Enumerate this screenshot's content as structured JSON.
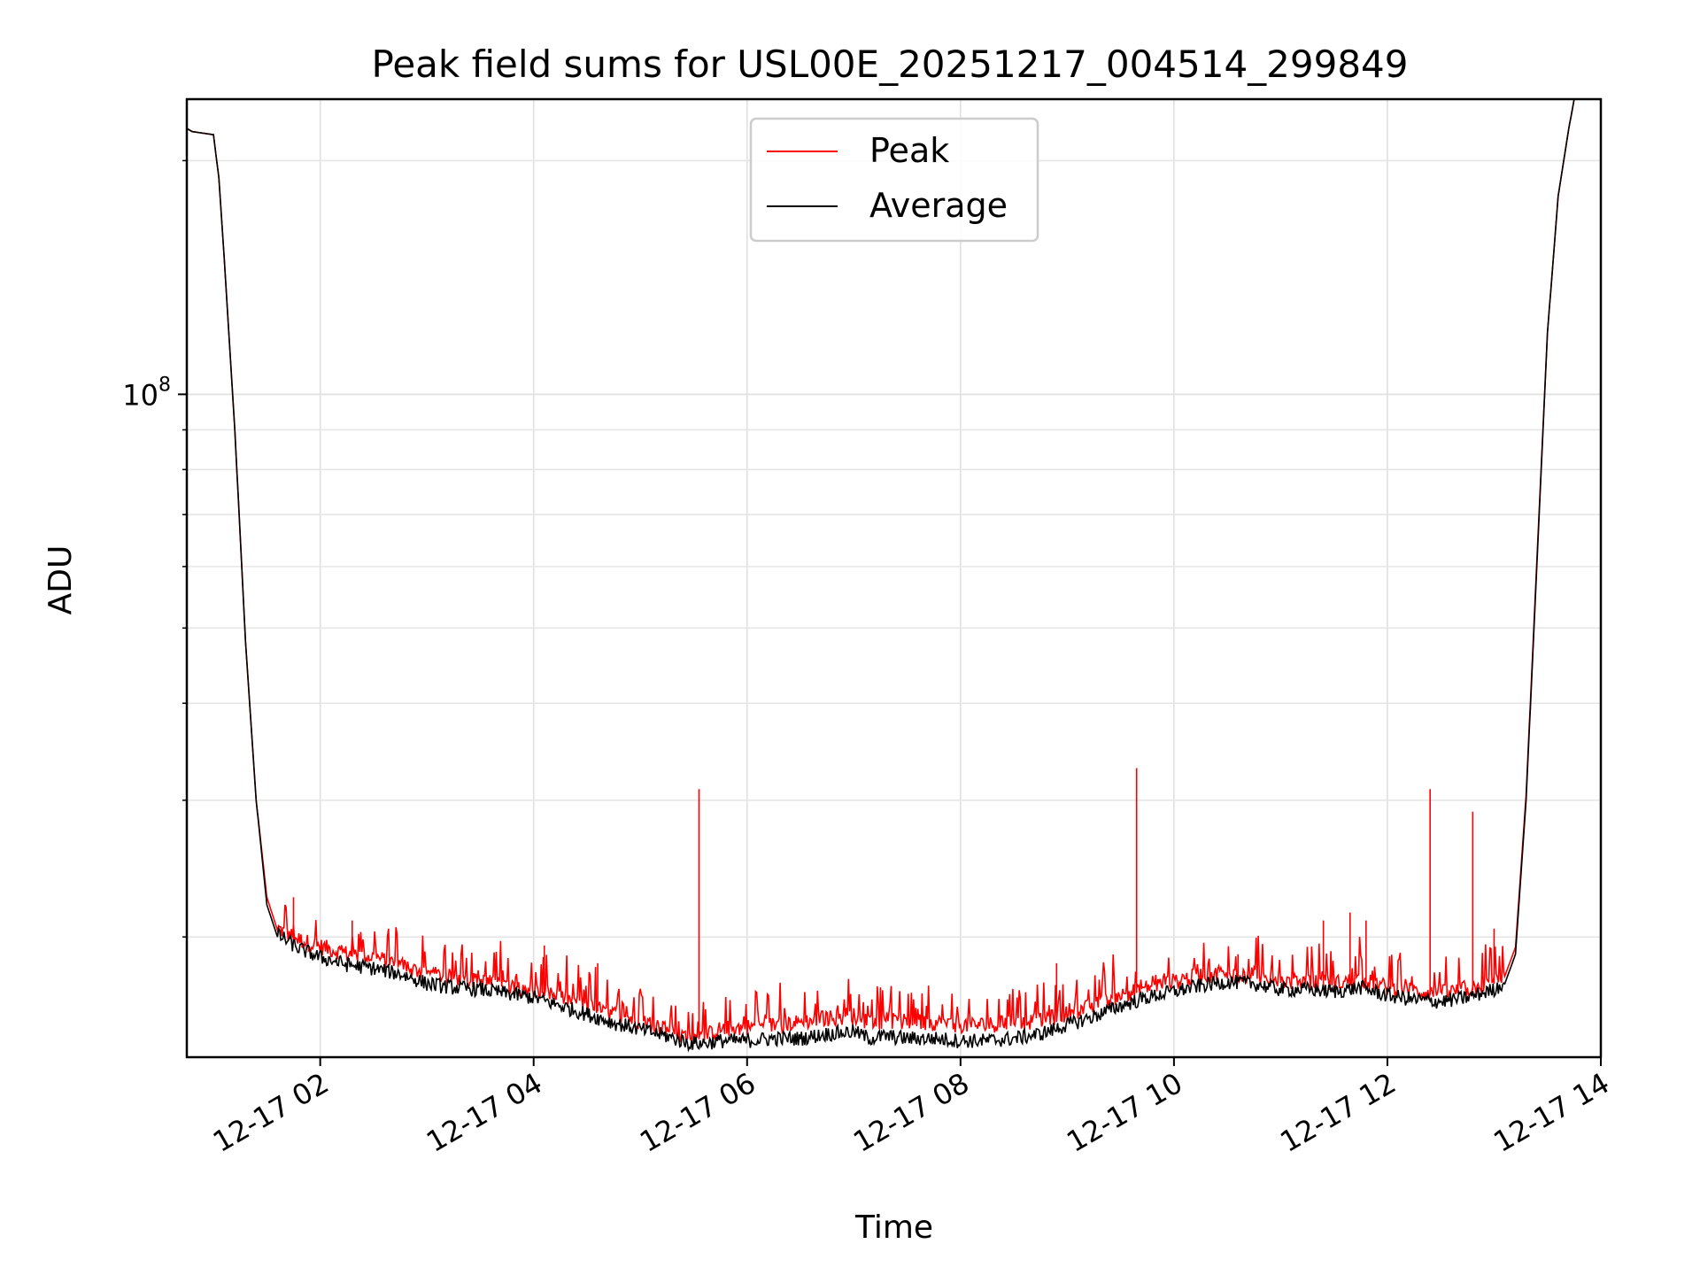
{
  "chart_data": {
    "type": "line",
    "title": "Peak field sums for USL00E_20251217_004514_299849",
    "xlabel": "Time",
    "ylabel": "ADU",
    "yscale": "log",
    "ylim": [
      14000000,
      240000000
    ],
    "y_major_ticks": [
      {
        "value": 100000000,
        "base": "10",
        "exp": "8"
      }
    ],
    "y_minor_ticks": [
      20000000,
      30000000,
      40000000,
      50000000,
      60000000,
      70000000,
      80000000,
      90000000,
      200000000
    ],
    "x_range_hours": [
      0.75,
      14.0
    ],
    "x_ticks": [
      {
        "hour": 2,
        "label": "12-17 02"
      },
      {
        "hour": 4,
        "label": "12-17 04"
      },
      {
        "hour": 6,
        "label": "12-17 06"
      },
      {
        "hour": 8,
        "label": "12-17 08"
      },
      {
        "hour": 10,
        "label": "12-17 10"
      },
      {
        "hour": 12,
        "label": "12-17 12"
      },
      {
        "hour": 14,
        "label": "12-17 14"
      }
    ],
    "grid": true,
    "legend": {
      "position": "upper-center",
      "entries": [
        {
          "name": "Peak",
          "color": "#ff0000"
        },
        {
          "name": "Average",
          "color": "#000000"
        }
      ]
    },
    "series": [
      {
        "name": "Average",
        "color": "#000000",
        "x_hours": [
          0.75,
          0.8,
          0.9,
          1.0,
          1.05,
          1.1,
          1.2,
          1.3,
          1.4,
          1.5,
          1.6,
          1.7,
          1.8,
          2.0,
          2.25,
          2.5,
          2.75,
          3.0,
          3.25,
          3.5,
          3.75,
          4.0,
          4.25,
          4.5,
          4.75,
          5.0,
          5.25,
          5.45,
          5.6,
          5.75,
          6.0,
          6.25,
          6.5,
          6.75,
          7.0,
          7.15,
          7.3,
          7.5,
          7.75,
          8.0,
          8.25,
          8.5,
          8.75,
          9.0,
          9.25,
          9.5,
          9.75,
          10.0,
          10.25,
          10.5,
          10.75,
          11.0,
          11.25,
          11.5,
          11.75,
          12.0,
          12.25,
          12.5,
          12.75,
          13.0,
          13.1,
          13.2,
          13.3,
          13.4,
          13.5,
          13.6,
          13.7,
          13.75
        ],
        "values": [
          220000000,
          218000000,
          217000000,
          216000000,
          190000000,
          150000000,
          90000000,
          48000000,
          30000000,
          22000000,
          20000000,
          19600000,
          19200000,
          18700000,
          18300000,
          18100000,
          17800000,
          17300000,
          17100000,
          17000000,
          16800000,
          16600000,
          16200000,
          15800000,
          15400000,
          15100000,
          14800000,
          14500000,
          14500000,
          14600000,
          14600000,
          14700000,
          14700000,
          14900000,
          15000000,
          14700000,
          14800000,
          14700000,
          14700000,
          14600000,
          14600000,
          14700000,
          14900000,
          15300000,
          15700000,
          16200000,
          16600000,
          16900000,
          17200000,
          17400000,
          17300000,
          17000000,
          17000000,
          16900000,
          17100000,
          16700000,
          16500000,
          16400000,
          16600000,
          17000000,
          17400000,
          19000000,
          30000000,
          60000000,
          120000000,
          180000000,
          220000000,
          240000000
        ]
      },
      {
        "name": "Peak",
        "color": "#ff0000",
        "x_hours": [
          0.75,
          0.8,
          0.9,
          1.0,
          1.05,
          1.1,
          1.2,
          1.3,
          1.4,
          1.5,
          1.6,
          1.7,
          1.8,
          2.0,
          2.25,
          2.5,
          2.75,
          3.0,
          3.25,
          3.5,
          3.75,
          4.0,
          4.25,
          4.5,
          4.75,
          5.0,
          5.25,
          5.45,
          5.6,
          5.75,
          6.0,
          6.25,
          6.5,
          6.75,
          7.0,
          7.15,
          7.3,
          7.5,
          7.75,
          8.0,
          8.25,
          8.5,
          8.75,
          9.0,
          9.25,
          9.5,
          9.75,
          10.0,
          10.25,
          10.5,
          10.75,
          11.0,
          11.25,
          11.5,
          11.75,
          12.0,
          12.25,
          12.5,
          12.75,
          13.0,
          13.1,
          13.2,
          13.3,
          13.4,
          13.5,
          13.6,
          13.7,
          13.75
        ],
        "values": [
          220000000,
          218000000,
          217000000,
          216000000,
          190000000,
          150000000,
          90000000,
          48000000,
          30000000,
          22500000,
          20400000,
          20000000,
          19700000,
          19300000,
          18900000,
          18700000,
          18300000,
          17800000,
          17600000,
          17400000,
          17200000,
          17000000,
          16600000,
          16200000,
          15800000,
          15500000,
          15100000,
          14700000,
          14800000,
          15100000,
          15200000,
          15300000,
          15400000,
          15600000,
          15700000,
          15400000,
          15500000,
          15400000,
          15400000,
          15300000,
          15300000,
          15400000,
          15500000,
          15800000,
          16200000,
          16700000,
          17100000,
          17400000,
          17700000,
          17800000,
          17700000,
          17400000,
          17400000,
          17300000,
          17500000,
          17100000,
          16900000,
          16800000,
          17000000,
          17400000,
          17800000,
          19400000,
          30500000,
          61000000,
          120000000,
          180000000,
          220000000,
          240000000
        ]
      }
    ],
    "peak_spikes": [
      {
        "hour": 5.55,
        "value": 31000000
      },
      {
        "hour": 9.65,
        "value": 33000000
      },
      {
        "hour": 12.4,
        "value": 31000000
      },
      {
        "hour": 12.8,
        "value": 29000000
      },
      {
        "hour": 11.65,
        "value": 21500000
      },
      {
        "hour": 11.4,
        "value": 21000000
      },
      {
        "hour": 11.8,
        "value": 21000000
      },
      {
        "hour": 13.0,
        "value": 20500000
      },
      {
        "hour": 1.75,
        "value": 22500000
      },
      {
        "hour": 2.3,
        "value": 21000000
      },
      {
        "hour": 4.1,
        "value": 19500000
      },
      {
        "hour": 4.6,
        "value": 18500000
      },
      {
        "hour": 8.9,
        "value": 18500000
      },
      {
        "hour": 10.6,
        "value": 19000000
      }
    ]
  }
}
